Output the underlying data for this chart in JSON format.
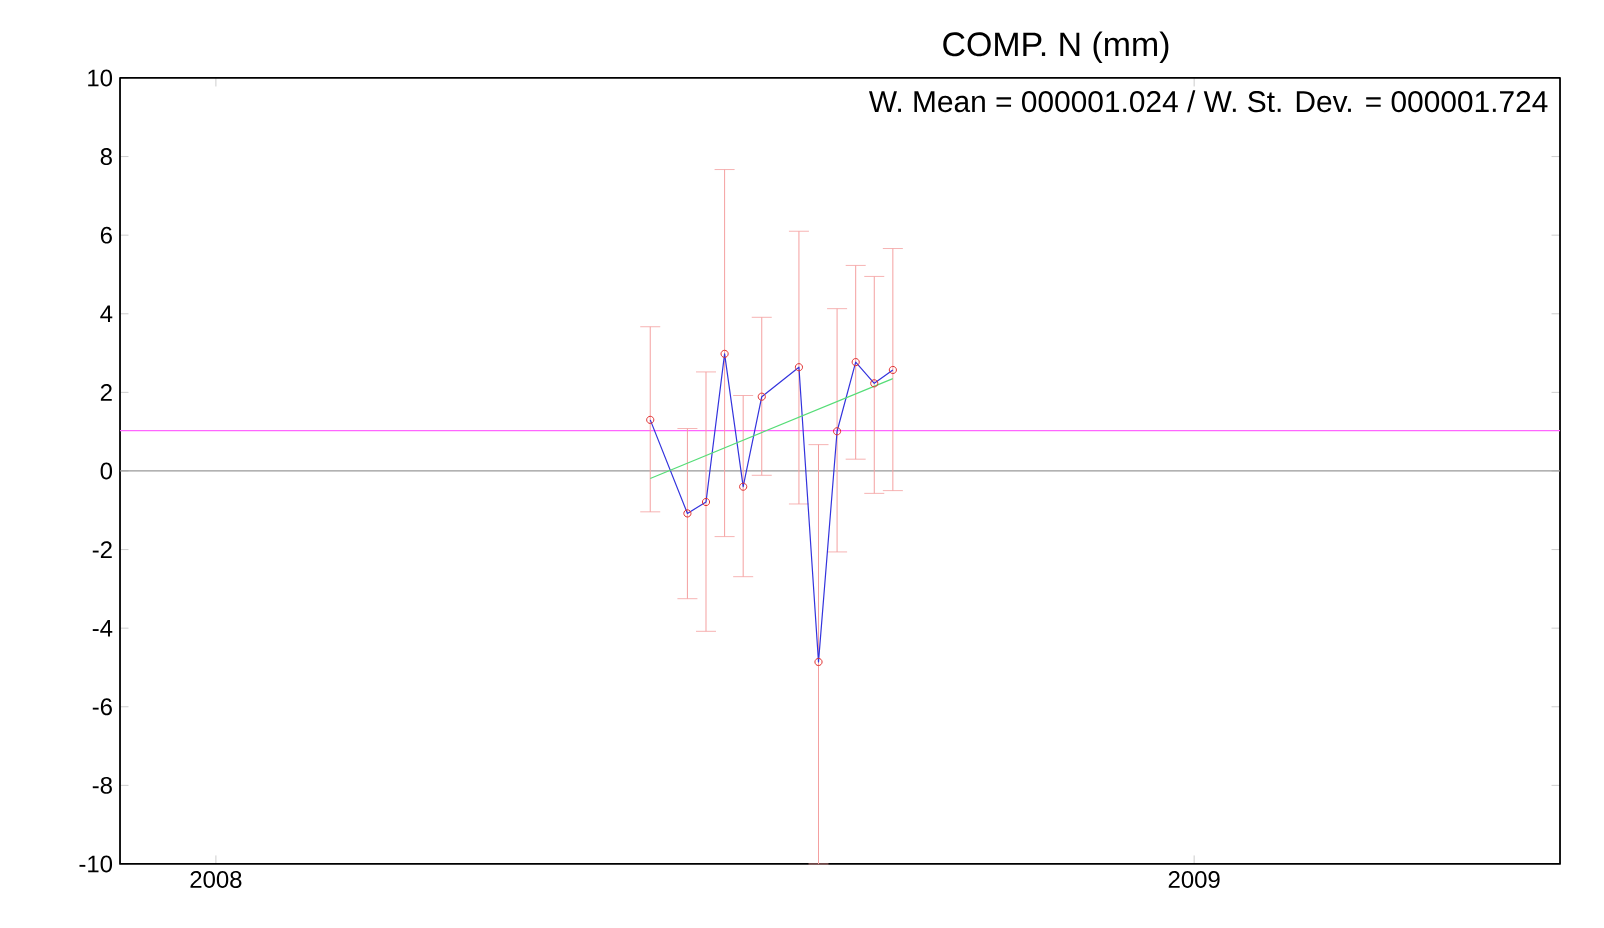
{
  "chart_data": {
    "type": "line",
    "title": "COMP. N (mm)",
    "annotations": [
      "W. Mean = 000001.024 / W. St. Dev. = 000001.724"
    ],
    "xlim": [
      2007.902,
      2009.374
    ],
    "xticks": [
      2008,
      2009
    ],
    "ylim": [
      -10,
      10
    ],
    "yticks": [
      -10,
      -8,
      -6,
      -4,
      -2,
      0,
      2,
      4,
      6,
      8,
      10
    ],
    "grid": false,
    "series": [
      {
        "color": "#3333dd",
        "marker": "circle",
        "line_style": "solid",
        "x": [
          2008.444,
          2008.482,
          2008.501,
          2008.52,
          2008.539,
          2008.558,
          2008.596,
          2008.616,
          2008.635,
          2008.654,
          2008.673,
          2008.692
        ],
        "values": [
          1.3,
          -1.08,
          -0.79,
          2.98,
          -0.4,
          1.89,
          2.64,
          -4.86,
          1.01,
          2.77,
          2.23,
          2.57
        ],
        "errors": [
          [
            -1.04,
            3.67
          ],
          [
            -3.25,
            1.08
          ],
          [
            -4.08,
            2.52
          ],
          [
            -1.67,
            7.67
          ],
          [
            -2.69,
            1.92
          ],
          [
            -0.11,
            3.91
          ],
          [
            -0.84,
            6.1
          ],
          [
            -10,
            0.67
          ],
          [
            -2.06,
            4.13
          ],
          [
            0.3,
            5.23
          ],
          [
            -0.57,
            4.95
          ],
          [
            -0.5,
            5.66
          ]
        ]
      },
      {
        "type": "line",
        "color": "#55dd77",
        "marker": "none",
        "line_style": "solid",
        "x": [
          2008.444,
          2008.692
        ],
        "values": [
          -0.19,
          2.35
        ]
      }
    ],
    "ref_lines": [
      {
        "axis": "y",
        "value": 0,
        "color": "#999999"
      },
      {
        "axis": "y",
        "value": 1.024,
        "color": "#ff66ff"
      }
    ]
  }
}
